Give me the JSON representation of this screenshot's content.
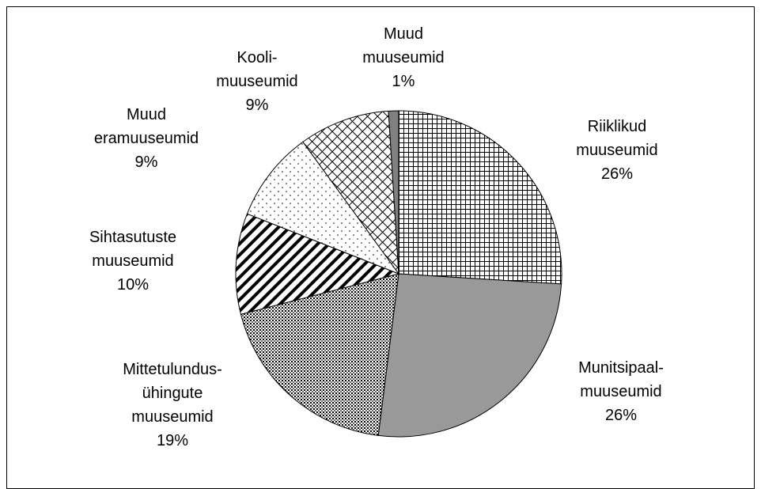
{
  "chart_data": {
    "type": "pie",
    "categories": [
      "Riiklikud\nmuuseumid",
      "Munitsipaal-\nmuuseumid",
      "Mittetulundus-\nühingute\nmuuseumid",
      "Sihtasutuste\nmuuseumid",
      "Muud\neramuuseumid",
      "Kooli-\nmuuseumid",
      "Muud\nmuuseumid"
    ],
    "values": [
      26,
      26,
      19,
      10,
      9,
      9,
      1
    ],
    "value_labels": [
      "26%",
      "26%",
      "19%",
      "10%",
      "9%",
      "9%",
      "1%"
    ]
  }
}
